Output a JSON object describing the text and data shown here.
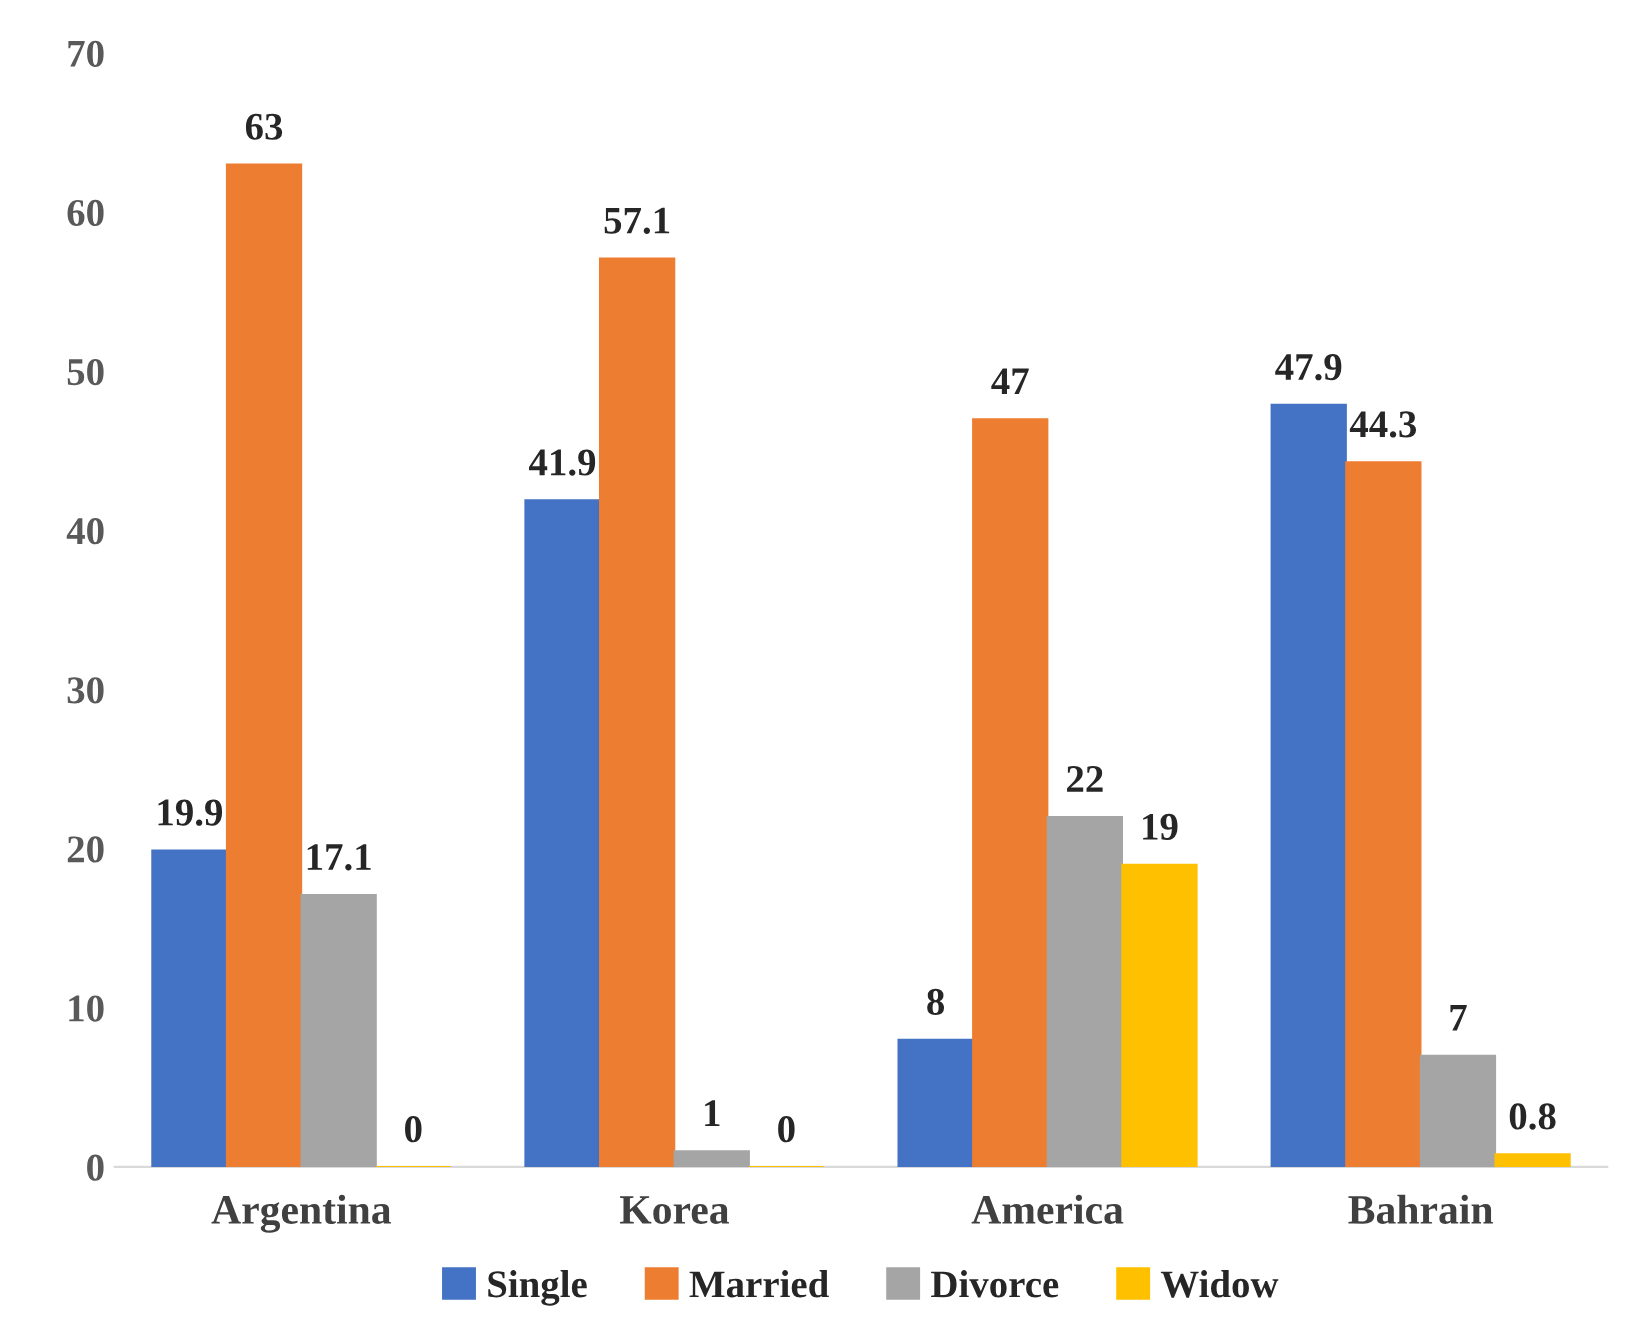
{
  "chart_data": {
    "type": "bar",
    "categories": [
      "Argentina",
      "Korea",
      "America",
      "Bahrain"
    ],
    "series": [
      {
        "name": "Single",
        "color": "#4472c4",
        "values": [
          19.9,
          41.9,
          8,
          47.9
        ]
      },
      {
        "name": "Married",
        "color": "#ed7d31",
        "values": [
          63,
          57.1,
          47,
          44.3
        ]
      },
      {
        "name": "Divorce",
        "color": "#a5a5a5",
        "values": [
          17.1,
          1,
          22,
          7
        ]
      },
      {
        "name": "Widow",
        "color": "#ffc000",
        "values": [
          0,
          0,
          19,
          0.8
        ]
      }
    ],
    "ylim": [
      0,
      70
    ],
    "yticks": [
      0,
      10,
      20,
      30,
      40,
      50,
      60,
      70
    ],
    "data_labels": true,
    "grid": false,
    "legend": "bottom"
  }
}
